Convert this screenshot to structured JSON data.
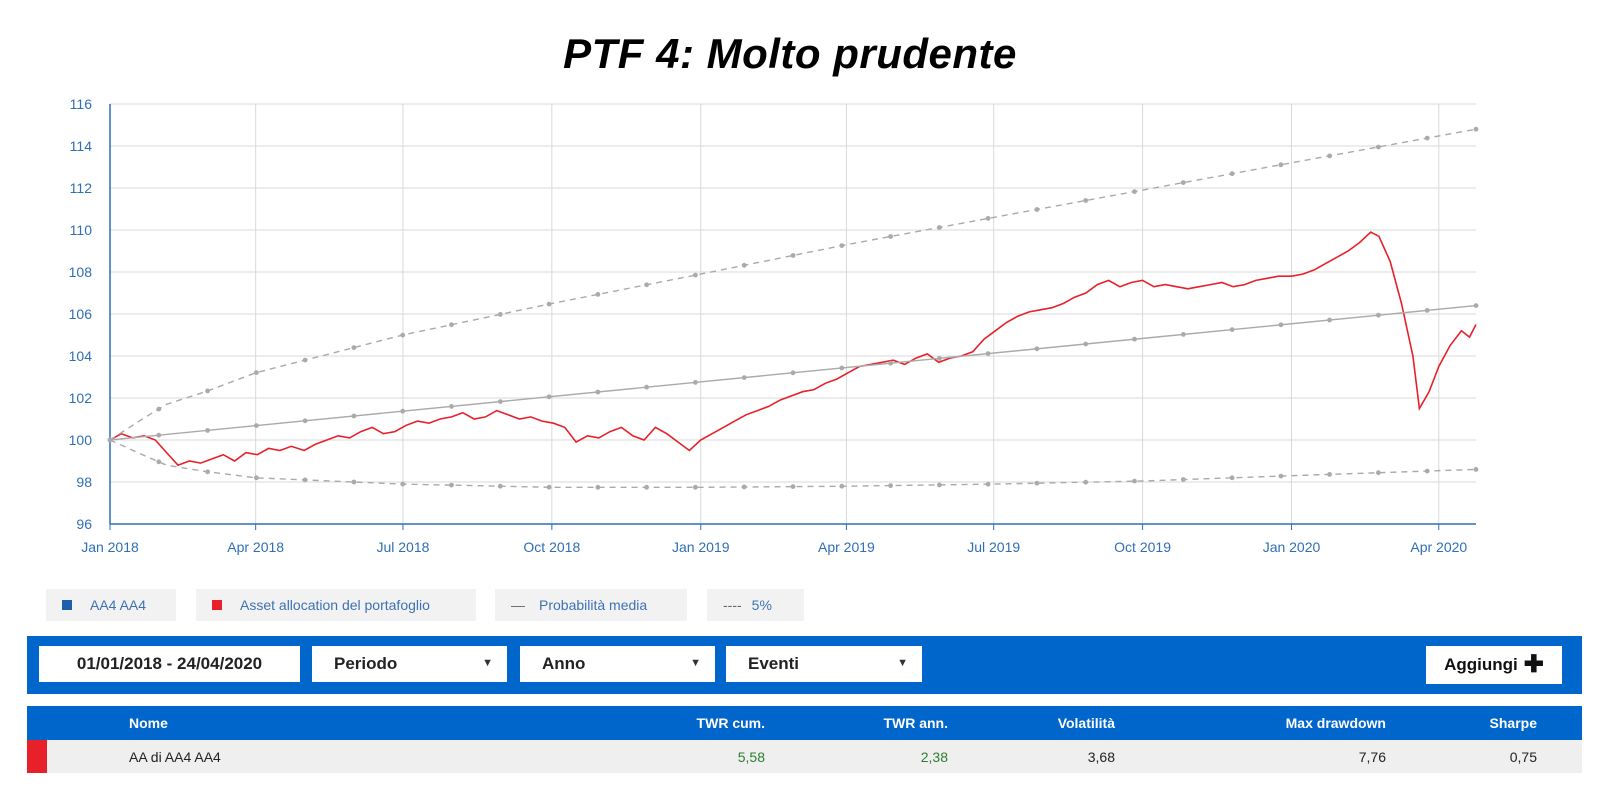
{
  "title": "PTF 4: Molto prudente",
  "chart_data": {
    "type": "line",
    "ylim": [
      96,
      116
    ],
    "y_ticks": [
      "96",
      "98",
      "100",
      "102",
      "104",
      "106",
      "108",
      "110",
      "112",
      "114",
      "116"
    ],
    "x_ticks": [
      {
        "label": "Jan 2018",
        "date": "2018-01-01"
      },
      {
        "label": "Apr 2018",
        "date": "2018-04-01"
      },
      {
        "label": "Jul 2018",
        "date": "2018-07-01"
      },
      {
        "label": "Oct 2018",
        "date": "2018-10-01"
      },
      {
        "label": "Jan 2019",
        "date": "2019-01-01"
      },
      {
        "label": "Apr 2019",
        "date": "2019-04-01"
      },
      {
        "label": "Jul 2019",
        "date": "2019-07-01"
      },
      {
        "label": "Oct 2019",
        "date": "2019-10-01"
      },
      {
        "label": "Jan 2020",
        "date": "2020-01-01"
      },
      {
        "label": "Apr 2020",
        "date": "2020-04-01"
      }
    ],
    "x_range": [
      "2018-01-01",
      "2020-04-24"
    ],
    "series": [
      {
        "name": "Asset allocation del portafoglio",
        "color": "#e8202a",
        "points": [
          [
            "2018-01-01",
            100.0
          ],
          [
            "2018-01-08",
            100.3
          ],
          [
            "2018-01-15",
            100.1
          ],
          [
            "2018-01-22",
            100.2
          ],
          [
            "2018-01-29",
            100.0
          ],
          [
            "2018-02-05",
            99.4
          ],
          [
            "2018-02-12",
            98.8
          ],
          [
            "2018-02-19",
            99.0
          ],
          [
            "2018-02-26",
            98.9
          ],
          [
            "2018-03-05",
            99.1
          ],
          [
            "2018-03-12",
            99.3
          ],
          [
            "2018-03-19",
            99.0
          ],
          [
            "2018-03-26",
            99.4
          ],
          [
            "2018-04-02",
            99.3
          ],
          [
            "2018-04-09",
            99.6
          ],
          [
            "2018-04-16",
            99.5
          ],
          [
            "2018-04-23",
            99.7
          ],
          [
            "2018-05-01",
            99.5
          ],
          [
            "2018-05-08",
            99.8
          ],
          [
            "2018-05-15",
            100.0
          ],
          [
            "2018-05-22",
            100.2
          ],
          [
            "2018-05-29",
            100.1
          ],
          [
            "2018-06-05",
            100.4
          ],
          [
            "2018-06-12",
            100.6
          ],
          [
            "2018-06-19",
            100.3
          ],
          [
            "2018-06-26",
            100.4
          ],
          [
            "2018-07-03",
            100.7
          ],
          [
            "2018-07-10",
            100.9
          ],
          [
            "2018-07-17",
            100.8
          ],
          [
            "2018-07-24",
            101.0
          ],
          [
            "2018-07-31",
            101.1
          ],
          [
            "2018-08-07",
            101.3
          ],
          [
            "2018-08-14",
            101.0
          ],
          [
            "2018-08-21",
            101.1
          ],
          [
            "2018-08-28",
            101.4
          ],
          [
            "2018-09-04",
            101.2
          ],
          [
            "2018-09-11",
            101.0
          ],
          [
            "2018-09-18",
            101.1
          ],
          [
            "2018-09-25",
            100.9
          ],
          [
            "2018-10-02",
            100.8
          ],
          [
            "2018-10-09",
            100.6
          ],
          [
            "2018-10-16",
            99.9
          ],
          [
            "2018-10-23",
            100.2
          ],
          [
            "2018-10-30",
            100.1
          ],
          [
            "2018-11-06",
            100.4
          ],
          [
            "2018-11-13",
            100.6
          ],
          [
            "2018-11-20",
            100.2
          ],
          [
            "2018-11-27",
            100.0
          ],
          [
            "2018-12-04",
            100.6
          ],
          [
            "2018-12-11",
            100.3
          ],
          [
            "2018-12-18",
            99.9
          ],
          [
            "2018-12-25",
            99.5
          ],
          [
            "2019-01-01",
            100.0
          ],
          [
            "2019-01-08",
            100.3
          ],
          [
            "2019-01-15",
            100.6
          ],
          [
            "2019-01-22",
            100.9
          ],
          [
            "2019-01-29",
            101.2
          ],
          [
            "2019-02-05",
            101.4
          ],
          [
            "2019-02-12",
            101.6
          ],
          [
            "2019-02-19",
            101.9
          ],
          [
            "2019-02-26",
            102.1
          ],
          [
            "2019-03-05",
            102.3
          ],
          [
            "2019-03-12",
            102.4
          ],
          [
            "2019-03-19",
            102.7
          ],
          [
            "2019-03-26",
            102.9
          ],
          [
            "2019-04-02",
            103.2
          ],
          [
            "2019-04-09",
            103.5
          ],
          [
            "2019-04-16",
            103.6
          ],
          [
            "2019-04-23",
            103.7
          ],
          [
            "2019-04-30",
            103.8
          ],
          [
            "2019-05-07",
            103.6
          ],
          [
            "2019-05-14",
            103.9
          ],
          [
            "2019-05-21",
            104.1
          ],
          [
            "2019-05-28",
            103.7
          ],
          [
            "2019-06-04",
            103.9
          ],
          [
            "2019-06-11",
            104.0
          ],
          [
            "2019-06-18",
            104.2
          ],
          [
            "2019-06-25",
            104.8
          ],
          [
            "2019-07-02",
            105.2
          ],
          [
            "2019-07-09",
            105.6
          ],
          [
            "2019-07-16",
            105.9
          ],
          [
            "2019-07-23",
            106.1
          ],
          [
            "2019-07-30",
            106.2
          ],
          [
            "2019-08-06",
            106.3
          ],
          [
            "2019-08-13",
            106.5
          ],
          [
            "2019-08-20",
            106.8
          ],
          [
            "2019-08-27",
            107.0
          ],
          [
            "2019-09-03",
            107.4
          ],
          [
            "2019-09-10",
            107.6
          ],
          [
            "2019-09-17",
            107.3
          ],
          [
            "2019-09-24",
            107.5
          ],
          [
            "2019-10-01",
            107.6
          ],
          [
            "2019-10-08",
            107.3
          ],
          [
            "2019-10-15",
            107.4
          ],
          [
            "2019-10-22",
            107.3
          ],
          [
            "2019-10-29",
            107.2
          ],
          [
            "2019-11-05",
            107.3
          ],
          [
            "2019-11-12",
            107.4
          ],
          [
            "2019-11-19",
            107.5
          ],
          [
            "2019-11-26",
            107.3
          ],
          [
            "2019-12-03",
            107.4
          ],
          [
            "2019-12-10",
            107.6
          ],
          [
            "2019-12-17",
            107.7
          ],
          [
            "2019-12-24",
            107.8
          ],
          [
            "2020-01-01",
            107.8
          ],
          [
            "2020-01-08",
            107.9
          ],
          [
            "2020-01-15",
            108.1
          ],
          [
            "2020-01-22",
            108.4
          ],
          [
            "2020-01-29",
            108.7
          ],
          [
            "2020-02-05",
            109.0
          ],
          [
            "2020-02-12",
            109.4
          ],
          [
            "2020-02-19",
            109.9
          ],
          [
            "2020-02-24",
            109.7
          ],
          [
            "2020-03-02",
            108.5
          ],
          [
            "2020-03-09",
            106.5
          ],
          [
            "2020-03-16",
            104.0
          ],
          [
            "2020-03-20",
            101.5
          ],
          [
            "2020-03-26",
            102.3
          ],
          [
            "2020-04-01",
            103.5
          ],
          [
            "2020-04-08",
            104.5
          ],
          [
            "2020-04-15",
            105.2
          ],
          [
            "2020-04-20",
            104.9
          ],
          [
            "2020-04-24",
            105.5
          ]
        ]
      },
      {
        "name": "Probabilità media",
        "color": "#aaaaaa",
        "points": [
          [
            "2018-01-01",
            100.0
          ],
          [
            "2020-04-24",
            106.4
          ]
        ]
      },
      {
        "name": "5%",
        "color": "#aaaaaa",
        "points": [
          [
            "2018-01-01",
            100.0
          ],
          [
            "2018-01-21",
            101.0
          ],
          [
            "2018-02-05",
            101.7
          ],
          [
            "2018-03-01",
            102.3
          ],
          [
            "2018-04-01",
            103.2
          ],
          [
            "2018-07-01",
            105.0
          ],
          [
            "2018-10-01",
            106.5
          ],
          [
            "2019-01-01",
            107.9
          ],
          [
            "2019-04-01",
            109.3
          ],
          [
            "2019-07-01",
            110.6
          ],
          [
            "2019-10-01",
            111.9
          ],
          [
            "2020-01-01",
            113.2
          ],
          [
            "2020-04-24",
            114.8
          ]
        ]
      },
      {
        "name": "5%",
        "color": "#aaaaaa",
        "points": [
          [
            "2018-01-01",
            100.0
          ],
          [
            "2018-01-21",
            99.3
          ],
          [
            "2018-02-05",
            98.8
          ],
          [
            "2018-03-01",
            98.5
          ],
          [
            "2018-04-01",
            98.2
          ],
          [
            "2018-07-01",
            97.9
          ],
          [
            "2018-10-01",
            97.75
          ],
          [
            "2019-01-01",
            97.75
          ],
          [
            "2019-04-01",
            97.8
          ],
          [
            "2019-07-01",
            97.9
          ],
          [
            "2019-10-01",
            98.05
          ],
          [
            "2020-01-01",
            98.3
          ],
          [
            "2020-04-24",
            98.6
          ]
        ]
      }
    ]
  },
  "legend": [
    {
      "label": "AA4 AA4",
      "color": "#1d5fa8",
      "glyph": ""
    },
    {
      "label": "Asset allocation del portafoglio",
      "color": "#e8202a",
      "glyph": ""
    },
    {
      "label": "Probabilità media",
      "color": "",
      "glyph": "—"
    },
    {
      "label": "5%",
      "color": "",
      "glyph": "----"
    }
  ],
  "toolbar": {
    "date_range": "01/01/2018 - 24/04/2020",
    "periodo": "Periodo",
    "anno": "Anno",
    "eventi": "Eventi",
    "add_label": "Aggiungi",
    "add_icon": "plus-icon",
    "dropdown_icon": "caret-down-icon"
  },
  "table": {
    "headers": {
      "nome": "Nome",
      "twr_cum": "TWR cum.",
      "twr_ann": "TWR ann.",
      "volatilita": "Volatilità",
      "max_drawdown": "Max drawdown",
      "sharpe": "Sharpe"
    },
    "rows": [
      {
        "color": "#e8202a",
        "nome": "AA di AA4 AA4",
        "twr_cum": "5,58",
        "twr_ann": "2,38",
        "volatilita": "3,68",
        "max_drawdown": "7,76",
        "sharpe": "0,75"
      }
    ]
  }
}
